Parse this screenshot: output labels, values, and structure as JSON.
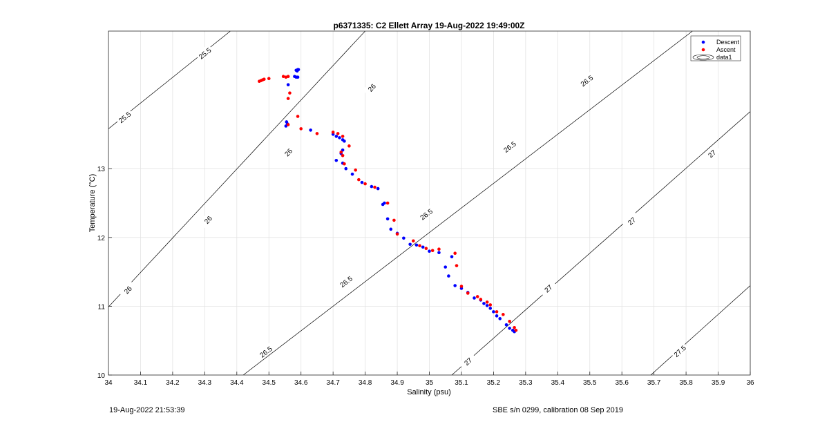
{
  "footer": {
    "left": "19-Aug-2022 21:53:39",
    "right": "SBE s/n 0299, calibration 08 Sep 2019"
  },
  "chart_data": {
    "type": "scatter",
    "title": "p6371335: C2 Ellett Array 19-Aug-2022 19:49:00Z",
    "xlabel": "Salinity (psu)",
    "ylabel": "Temperature (°C)",
    "xlim": [
      34,
      36
    ],
    "ylim": [
      10,
      15
    ],
    "xticks": [
      34,
      34.1,
      34.2,
      34.3,
      34.4,
      34.5,
      34.6,
      34.7,
      34.8,
      34.9,
      35,
      35.1,
      35.2,
      35.3,
      35.4,
      35.5,
      35.6,
      35.7,
      35.8,
      35.9,
      36
    ],
    "xtick_labels": [
      "34",
      "34.1",
      "34.2",
      "34.3",
      "34.4",
      "34.5",
      "34.6",
      "34.7",
      "34.8",
      "34.9",
      "35",
      "35.1",
      "35.2",
      "35.3",
      "35.4",
      "35.5",
      "35.6",
      "35.7",
      "35.8",
      "35.9",
      "36"
    ],
    "yticks": [
      10,
      11,
      12,
      13
    ],
    "ytick_labels": [
      "10",
      "11",
      "12",
      "13"
    ],
    "grid": true,
    "legend_position": "top-right",
    "legend": [
      {
        "label": "Descent",
        "color": "#0000ff",
        "kind": "marker"
      },
      {
        "label": "Ascent",
        "color": "#ff0000",
        "kind": "marker"
      },
      {
        "label": "data1",
        "color": "#000000",
        "kind": "contour"
      }
    ],
    "contours": [
      {
        "level": "25.5",
        "points": [
          [
            34,
            13.58
          ],
          [
            34.38,
            15
          ]
        ],
        "labels": [
          [
            34.05,
            13.75
          ],
          [
            34.3,
            14.68
          ]
        ]
      },
      {
        "level": "26",
        "points": [
          [
            34,
            10.99
          ],
          [
            34.8,
            15
          ]
        ],
        "labels": [
          [
            34.06,
            11.24
          ],
          [
            34.31,
            12.26
          ],
          [
            34.56,
            13.24
          ],
          [
            34.82,
            14.18
          ]
        ]
      },
      {
        "level": "26.5",
        "points": [
          [
            34.42,
            10
          ],
          [
            35.82,
            15
          ]
        ],
        "labels": [
          [
            34.49,
            10.34
          ],
          [
            34.74,
            11.36
          ],
          [
            34.99,
            12.34
          ],
          [
            35.25,
            13.32
          ],
          [
            35.49,
            14.28
          ]
        ]
      },
      {
        "level": "27",
        "points": [
          [
            35.07,
            10
          ],
          [
            36,
            13.83
          ]
        ],
        "labels": [
          [
            35.12,
            10.2
          ],
          [
            35.37,
            11.26
          ],
          [
            35.63,
            12.24
          ],
          [
            35.88,
            13.22
          ]
        ]
      },
      {
        "level": "27.5",
        "points": [
          [
            35.69,
            10
          ],
          [
            36,
            11.3
          ]
        ],
        "labels": [
          [
            35.78,
            10.35
          ]
        ]
      }
    ],
    "series": [
      {
        "name": "Descent",
        "color": "#0000ff",
        "x": [
          34.585,
          34.59,
          34.588,
          34.592,
          34.58,
          34.585,
          34.59,
          34.56,
          34.555,
          34.553,
          34.558,
          34.63,
          34.7,
          34.71,
          34.72,
          34.73,
          34.735,
          34.73,
          34.725,
          34.71,
          34.73,
          34.74,
          34.76,
          34.79,
          34.82,
          34.84,
          34.855,
          34.86,
          34.87,
          34.88,
          34.9,
          34.92,
          34.94,
          34.96,
          34.98,
          35,
          35.03,
          35.05,
          35.06,
          35.07,
          35.08,
          35.1,
          35.12,
          35.14,
          35.16,
          35.17,
          35.18,
          35.19,
          35.2,
          35.21,
          35.22,
          35.24,
          35.25,
          35.26,
          35.265
        ],
        "y": [
          14.43,
          14.44,
          14.42,
          14.44,
          14.34,
          14.33,
          14.33,
          14.22,
          13.68,
          13.62,
          13.65,
          13.56,
          13.5,
          13.47,
          13.45,
          13.42,
          13.4,
          13.27,
          13.22,
          13.12,
          13.08,
          13,
          12.92,
          12.8,
          12.74,
          12.71,
          12.48,
          12.5,
          12.27,
          12.12,
          12.06,
          11.99,
          11.9,
          11.89,
          11.86,
          11.8,
          11.78,
          11.57,
          11.44,
          11.72,
          11.3,
          11.26,
          11.2,
          11.12,
          11.09,
          11.04,
          11.01,
          10.97,
          10.92,
          10.86,
          10.82,
          10.73,
          10.68,
          10.65,
          10.63
        ]
      },
      {
        "name": "Ascent",
        "color": "#ff0000",
        "x": [
          34.47,
          34.475,
          34.48,
          34.485,
          34.5,
          34.545,
          34.553,
          34.56,
          34.565,
          34.56,
          34.59,
          34.6,
          34.56,
          34.65,
          34.7,
          34.715,
          34.73,
          34.75,
          34.725,
          34.73,
          34.735,
          34.77,
          34.78,
          34.8,
          34.83,
          34.87,
          34.89,
          34.9,
          34.95,
          34.97,
          34.99,
          35.01,
          35.03,
          35.08,
          35.085,
          35.1,
          35.12,
          35.15,
          35.16,
          35.18,
          35.19,
          35.21,
          35.23,
          35.25,
          35.265,
          35.27
        ],
        "y": [
          14.27,
          14.28,
          14.29,
          14.3,
          14.31,
          14.34,
          14.33,
          14.34,
          14.1,
          14.02,
          13.76,
          13.58,
          13.64,
          13.51,
          13.53,
          13.51,
          13.47,
          13.33,
          13.24,
          13.19,
          13.07,
          12.98,
          12.84,
          12.78,
          12.73,
          12.5,
          12.25,
          12.05,
          11.95,
          11.88,
          11.84,
          11.81,
          11.83,
          11.77,
          11.59,
          11.29,
          11.19,
          11.14,
          11.1,
          11.06,
          11.02,
          10.92,
          10.88,
          10.78,
          10.69,
          10.65
        ]
      }
    ]
  }
}
